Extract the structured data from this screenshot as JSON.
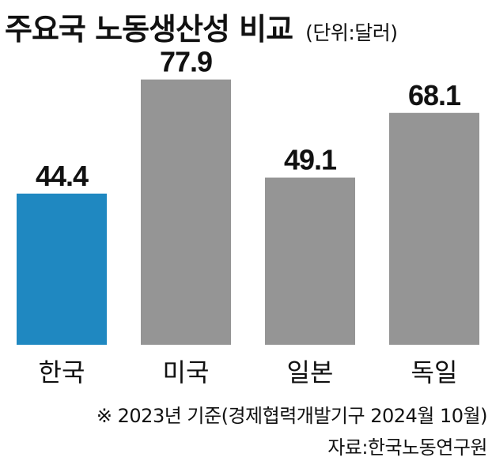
{
  "chart_data": {
    "type": "bar",
    "title": "주요국 노동생산성 비교",
    "unit": "(단위:달러)",
    "categories": [
      "한국",
      "미국",
      "일본",
      "독일"
    ],
    "values": [
      44.4,
      77.9,
      49.1,
      68.1
    ],
    "value_labels": [
      "44.4",
      "77.9",
      "49.1",
      "68.1"
    ],
    "ylim": [
      0,
      85
    ],
    "grid": false,
    "highlight_category": "한국",
    "colors": {
      "highlight": "#1f88c1",
      "default": "#959595"
    }
  },
  "footer": {
    "note": "※  2023년 기준(경제협력개발기구 2024월 10월)",
    "source": "자료:한국노동연구원"
  }
}
